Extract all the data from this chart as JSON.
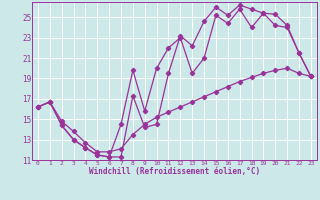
{
  "xlabel": "Windchill (Refroidissement éolien,°C)",
  "bg_color": "#cce8e8",
  "line_color": "#993399",
  "ylim": [
    11,
    26
  ],
  "yticks": [
    11,
    13,
    15,
    17,
    19,
    21,
    23,
    25
  ],
  "xticks": [
    0,
    1,
    2,
    3,
    4,
    5,
    6,
    7,
    8,
    9,
    10,
    11,
    12,
    13,
    14,
    15,
    16,
    17,
    18,
    19,
    20,
    21,
    22,
    23
  ],
  "line1_x": [
    0,
    1,
    2,
    3,
    4,
    5,
    6,
    7,
    8,
    9,
    10,
    11,
    12,
    13,
    14,
    15,
    16,
    17,
    18,
    19,
    20,
    21,
    22,
    23
  ],
  "line1_y": [
    16.2,
    16.7,
    14.4,
    13.0,
    12.2,
    11.5,
    11.3,
    11.3,
    17.3,
    14.2,
    14.5,
    19.5,
    23.2,
    22.2,
    24.6,
    26.0,
    25.2,
    26.2,
    25.8,
    25.4,
    25.3,
    24.2,
    21.5,
    19.2
  ],
  "line2_x": [
    0,
    1,
    2,
    3,
    4,
    5,
    6,
    7,
    8,
    9,
    10,
    11,
    12,
    13,
    14,
    15,
    16,
    17,
    18,
    19,
    20,
    21,
    22,
    23
  ],
  "line2_y": [
    16.2,
    16.7,
    14.4,
    13.0,
    12.2,
    11.5,
    11.3,
    14.5,
    19.8,
    15.8,
    20.0,
    22.0,
    23.0,
    19.5,
    21.0,
    25.2,
    24.4,
    25.8,
    24.0,
    25.4,
    24.2,
    24.0,
    21.5,
    19.2
  ],
  "line3_x": [
    0,
    1,
    2,
    3,
    4,
    5,
    6,
    7,
    8,
    9,
    10,
    11,
    12,
    13,
    14,
    15,
    16,
    17,
    18,
    19,
    20,
    21,
    22,
    23
  ],
  "line3_y": [
    16.2,
    16.7,
    14.8,
    13.8,
    12.7,
    11.8,
    11.8,
    12.1,
    13.5,
    14.5,
    15.2,
    15.7,
    16.2,
    16.7,
    17.2,
    17.7,
    18.2,
    18.7,
    19.1,
    19.5,
    19.8,
    20.0,
    19.5,
    19.2
  ]
}
